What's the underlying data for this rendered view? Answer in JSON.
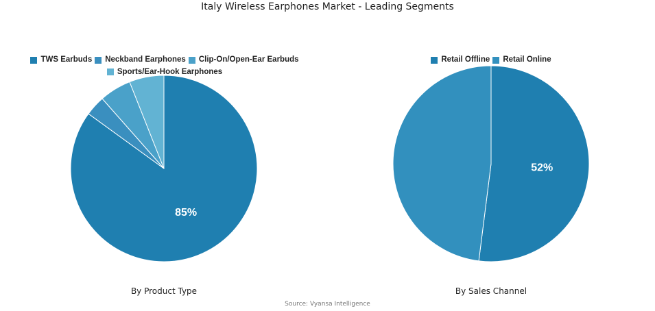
{
  "title": "Italy Wireless Earphones Market - Leading Segments",
  "source": "Source: Vyansa Intelligence",
  "chart_data": [
    {
      "type": "pie",
      "subtitle": "By Product Type",
      "legend_placement": "top",
      "slices": [
        {
          "name": "TWS Earbuds",
          "value": 85,
          "label": "85%",
          "color": "#1f7fb0"
        },
        {
          "name": "Neckband Earphones",
          "value": 3.5,
          "label": "",
          "color": "#3a8fbf"
        },
        {
          "name": "Clip-On/Open-Ear Earbuds",
          "value": 5.5,
          "label": "",
          "color": "#4aa1c9"
        },
        {
          "name": "Sports/Ear-Hook Earphones",
          "value": 6,
          "label": "",
          "color": "#62b3d3"
        }
      ]
    },
    {
      "type": "pie",
      "subtitle": "By Sales Channel",
      "legend_placement": "top",
      "slices": [
        {
          "name": "Retail Offline",
          "value": 52,
          "label": "52%",
          "color": "#1f7fb0"
        },
        {
          "name": "Retail Online",
          "value": 48,
          "label": "",
          "color": "#3290be"
        }
      ]
    }
  ]
}
